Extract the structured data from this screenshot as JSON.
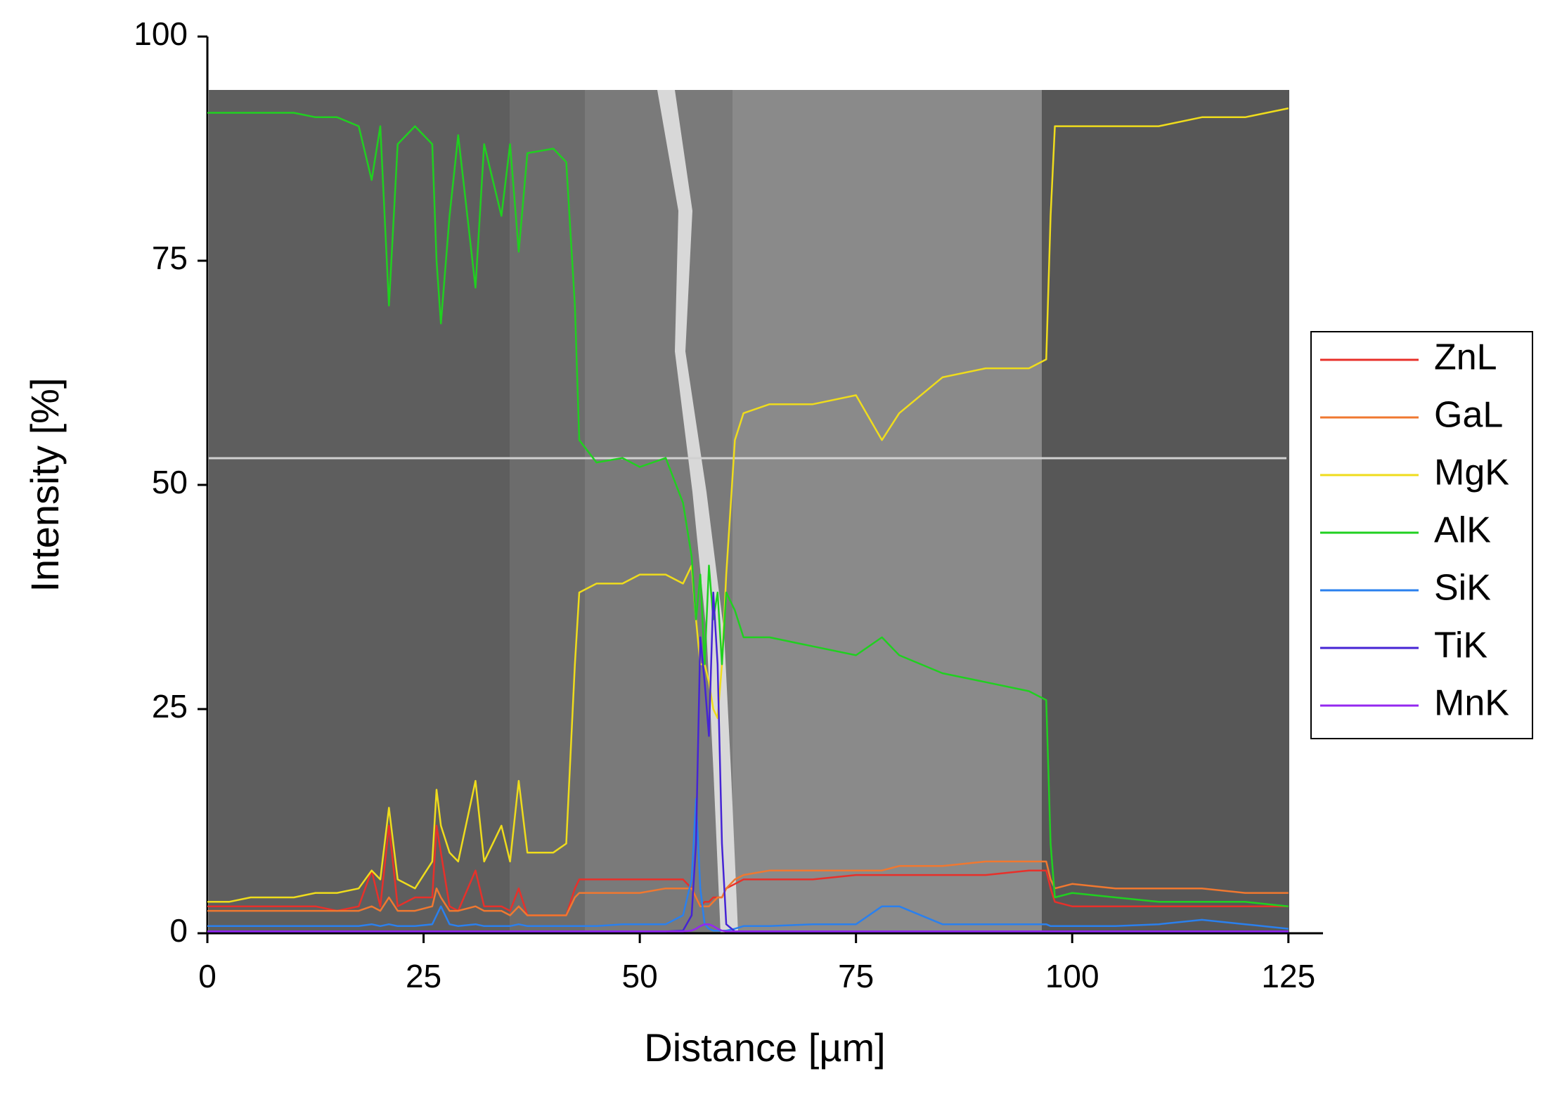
{
  "chart_data": {
    "type": "line",
    "x_label": "Distance [µm]",
    "y_label": "Intensity [%]",
    "xlim": [
      0,
      129
    ],
    "ylim": [
      0,
      100
    ],
    "xticks": [
      0,
      25,
      50,
      75,
      100,
      125
    ],
    "yticks": [
      0,
      25,
      50,
      75,
      100
    ],
    "legend": "right",
    "x": [
      0,
      2.5,
      5,
      7.5,
      10,
      12.5,
      15,
      17.5,
      19,
      20,
      21,
      22,
      24,
      26,
      26.5,
      27,
      28,
      29,
      31,
      32,
      34,
      35,
      36,
      37,
      40,
      41.5,
      42.5,
      43,
      45,
      48,
      50,
      53,
      55,
      56,
      56.5,
      57,
      57.5,
      58,
      58.5,
      59,
      59.5,
      60,
      61,
      62,
      65,
      70,
      75,
      78,
      80,
      85,
      90,
      95,
      97,
      97.5,
      98,
      100,
      105,
      110,
      115,
      120,
      125
    ],
    "series": [
      {
        "name": "ZnL",
        "color": "#e8302a",
        "values": [
          3,
          3,
          3,
          3,
          3,
          3,
          2.5,
          3,
          7,
          3,
          12,
          3,
          4,
          4,
          12,
          9,
          3,
          2.5,
          7,
          3,
          3,
          2.5,
          5,
          2,
          2,
          2,
          5,
          6,
          6,
          6,
          6,
          6,
          6,
          5,
          4,
          3,
          3.5,
          3.5,
          4,
          4,
          4,
          5,
          5.5,
          6,
          6,
          6,
          6.5,
          6.5,
          6.5,
          6.5,
          6.5,
          7,
          7,
          5,
          3.5,
          3,
          3,
          3,
          3,
          3,
          3
        ]
      },
      {
        "name": "GaL",
        "color": "#f07830",
        "values": [
          2.5,
          2.5,
          2.5,
          2.5,
          2.5,
          2.5,
          2.5,
          2.5,
          3,
          2.5,
          4,
          2.5,
          2.5,
          3,
          5,
          4,
          2.5,
          2.5,
          3,
          2.5,
          2.5,
          2,
          3,
          2,
          2,
          2,
          4,
          4.5,
          4.5,
          4.5,
          4.5,
          5,
          5,
          5,
          4,
          3,
          3,
          3,
          3.5,
          4,
          4,
          5,
          6,
          6.5,
          7,
          7,
          7,
          7,
          7.5,
          7.5,
          8,
          8,
          8,
          6,
          5,
          5.5,
          5,
          5,
          5,
          4.5,
          4.5
        ]
      },
      {
        "name": "MgK",
        "color": "#efdc1c",
        "values": [
          3.5,
          3.5,
          4,
          4,
          4,
          4.5,
          4.5,
          5,
          7,
          6,
          14,
          6,
          5,
          8,
          16,
          12,
          9,
          8,
          17,
          8,
          12,
          8,
          17,
          9,
          9,
          10,
          30,
          38,
          39,
          39,
          40,
          40,
          39,
          41,
          35,
          30,
          30,
          28,
          25,
          24,
          30,
          40,
          55,
          58,
          59,
          59,
          60,
          55,
          58,
          62,
          63,
          63,
          64,
          80,
          90,
          90,
          90,
          90,
          91,
          91,
          92
        ]
      },
      {
        "name": "AlK",
        "color": "#20d020",
        "values": [
          91.5,
          91.5,
          91.5,
          91.5,
          91.5,
          91,
          91,
          90,
          84,
          90,
          70,
          88,
          90,
          88,
          75,
          68,
          80,
          89,
          72,
          88,
          80,
          88,
          76,
          87,
          87.5,
          86,
          70,
          55,
          52.5,
          53,
          52,
          53,
          48,
          42,
          35,
          40,
          30,
          41,
          35,
          38,
          30,
          38,
          36,
          33,
          33,
          32,
          31,
          33,
          31,
          29,
          28,
          27,
          26,
          10,
          4,
          4.5,
          4,
          3.5,
          3.5,
          3.5,
          3
        ]
      },
      {
        "name": "SiK",
        "color": "#2a80ee",
        "values": [
          0.8,
          0.8,
          0.8,
          0.8,
          0.8,
          0.8,
          0.8,
          0.8,
          1,
          0.8,
          1,
          0.8,
          0.8,
          1,
          2,
          3,
          1,
          0.8,
          1,
          0.8,
          0.8,
          0.8,
          1,
          0.8,
          0.8,
          0.8,
          0.8,
          0.8,
          0.8,
          1,
          1,
          1,
          2,
          6,
          15,
          5,
          1,
          0.5,
          0.3,
          0.3,
          0.3,
          0.3,
          0.5,
          0.8,
          0.8,
          1,
          1,
          3,
          3,
          1,
          1,
          1,
          1,
          0.8,
          0.8,
          0.8,
          0.8,
          1,
          1.5,
          1,
          0.5
        ]
      },
      {
        "name": "TiK",
        "color": "#4524d4",
        "values": [
          0.2,
          0.2,
          0.2,
          0.2,
          0.2,
          0.2,
          0.2,
          0.2,
          0.2,
          0.2,
          0.2,
          0.2,
          0.2,
          0.2,
          0.2,
          0.2,
          0.2,
          0.2,
          0.2,
          0.2,
          0.2,
          0.2,
          0.2,
          0.2,
          0.2,
          0.2,
          0.2,
          0.2,
          0.2,
          0.2,
          0.2,
          0.2,
          0.3,
          2,
          10,
          33,
          28,
          22,
          38,
          30,
          10,
          1,
          0.2,
          0.2,
          0.2,
          0.2,
          0.2,
          0.2,
          0.2,
          0.2,
          0.2,
          0.2,
          0.2,
          0.2,
          0.2,
          0.2,
          0.2,
          0.2,
          0.2,
          0.2,
          0.2
        ]
      },
      {
        "name": "MnK",
        "color": "#9428f0",
        "values": [
          0.2,
          0.2,
          0.2,
          0.2,
          0.2,
          0.2,
          0.2,
          0.2,
          0.2,
          0.2,
          0.2,
          0.2,
          0.2,
          0.2,
          0.2,
          0.2,
          0.2,
          0.2,
          0.2,
          0.2,
          0.2,
          0.2,
          0.2,
          0.2,
          0.2,
          0.2,
          0.2,
          0.2,
          0.2,
          0.2,
          0.2,
          0.2,
          0.2,
          0.3,
          0.5,
          0.8,
          1,
          1,
          0.8,
          0.5,
          0.3,
          0.2,
          0.2,
          0.2,
          0.2,
          0.2,
          0.2,
          0.2,
          0.2,
          0.2,
          0.2,
          0.2,
          0.2,
          0.2,
          0.2,
          0.2,
          0.2,
          0.2,
          0.2,
          0.2,
          0.2
        ]
      }
    ]
  }
}
